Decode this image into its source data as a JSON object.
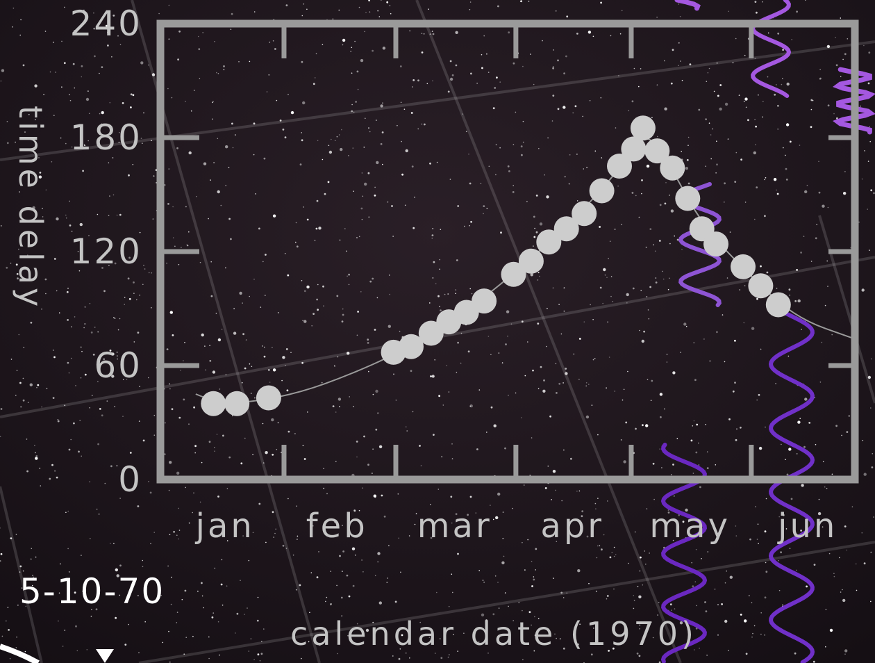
{
  "chart_data": {
    "type": "scatter",
    "ylabel": "time delay",
    "xlabel": "calendar date (1970)",
    "annotation": "5-10-70",
    "ylim": [
      0,
      240
    ],
    "y_ticks": [
      0,
      60,
      120,
      180,
      240
    ],
    "x_ticks": [
      "jan",
      "feb",
      "mar",
      "apr",
      "may",
      "jun"
    ],
    "x_unit": "month of 1970 (1.0 = 1 Jan)",
    "xlim": [
      1.0,
      6.9
    ],
    "grid": false,
    "legend": "none",
    "series": [
      {
        "values": [
          {
            "x": 1.45,
            "y": 40
          },
          {
            "x": 1.65,
            "y": 40
          },
          {
            "x": 1.92,
            "y": 43
          },
          {
            "x": 2.98,
            "y": 67
          },
          {
            "x": 3.13,
            "y": 70
          },
          {
            "x": 3.3,
            "y": 77
          },
          {
            "x": 3.45,
            "y": 83
          },
          {
            "x": 3.6,
            "y": 88
          },
          {
            "x": 3.75,
            "y": 94
          },
          {
            "x": 4.0,
            "y": 108
          },
          {
            "x": 4.15,
            "y": 115
          },
          {
            "x": 4.3,
            "y": 125
          },
          {
            "x": 4.45,
            "y": 132
          },
          {
            "x": 4.6,
            "y": 140
          },
          {
            "x": 4.75,
            "y": 152
          },
          {
            "x": 4.9,
            "y": 165
          },
          {
            "x": 5.02,
            "y": 174
          },
          {
            "x": 5.1,
            "y": 185
          },
          {
            "x": 5.22,
            "y": 173
          },
          {
            "x": 5.35,
            "y": 164
          },
          {
            "x": 5.48,
            "y": 148
          },
          {
            "x": 5.6,
            "y": 132
          },
          {
            "x": 5.72,
            "y": 124
          },
          {
            "x": 5.95,
            "y": 112
          },
          {
            "x": 6.1,
            "y": 102
          },
          {
            "x": 6.25,
            "y": 92
          }
        ]
      }
    ],
    "fit_curve": [
      {
        "x": 1.3,
        "y": 45
      },
      {
        "x": 1.5,
        "y": 40
      },
      {
        "x": 1.8,
        "y": 41
      },
      {
        "x": 2.2,
        "y": 46
      },
      {
        "x": 2.6,
        "y": 55
      },
      {
        "x": 3.0,
        "y": 66
      },
      {
        "x": 3.5,
        "y": 84
      },
      {
        "x": 4.0,
        "y": 108
      },
      {
        "x": 4.5,
        "y": 136
      },
      {
        "x": 4.9,
        "y": 163
      },
      {
        "x": 5.1,
        "y": 184
      },
      {
        "x": 5.3,
        "y": 169
      },
      {
        "x": 5.6,
        "y": 134
      },
      {
        "x": 6.0,
        "y": 108
      },
      {
        "x": 6.4,
        "y": 85
      },
      {
        "x": 6.9,
        "y": 74
      }
    ]
  },
  "colors": {
    "background": "#1a1418",
    "frame": "#9a9a9a",
    "points": "#cdcdcd",
    "fit_line": "#9a9a9a",
    "label": "#c4c4c4",
    "date_stamp": "#ffffff",
    "waves": [
      "#8e54d4",
      "#a458e0",
      "#7030c8",
      "#6a28c0"
    ]
  }
}
